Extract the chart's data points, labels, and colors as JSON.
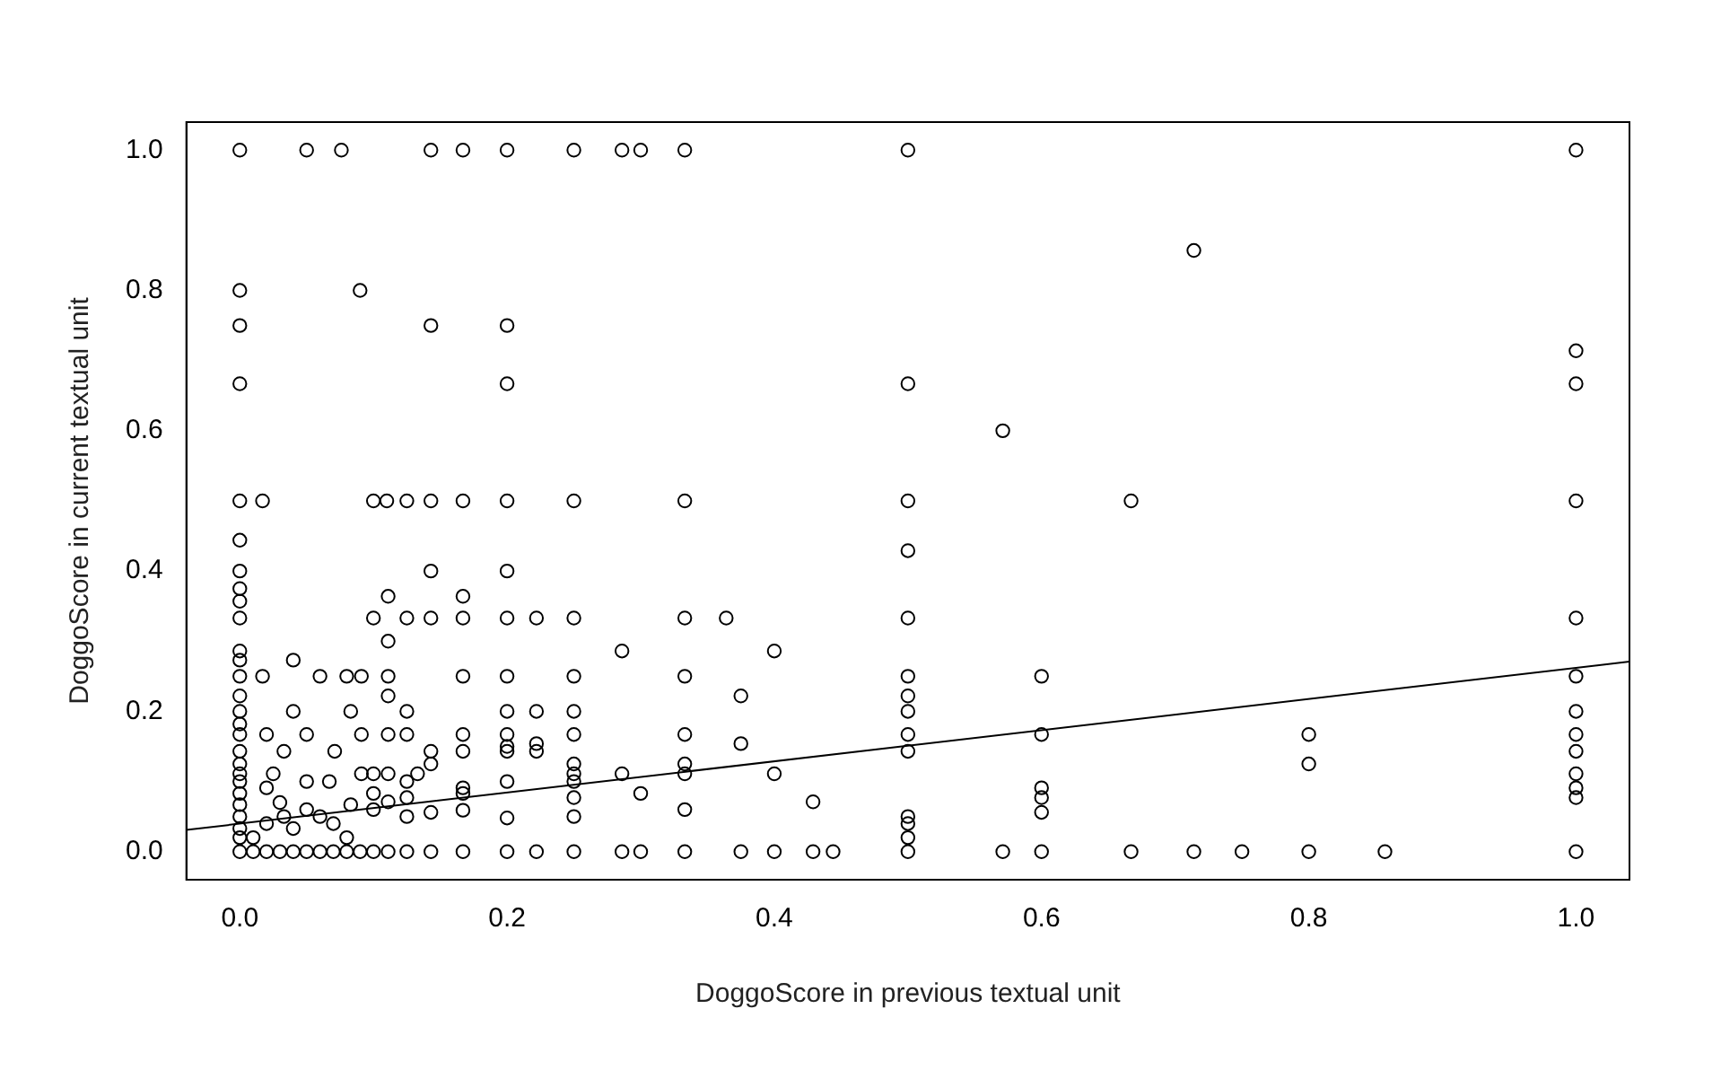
{
  "chart_data": {
    "type": "scatter",
    "xlabel": "DoggoScore in previous textual unit",
    "ylabel": "DoggoScore in current textual unit",
    "xlim": [
      -0.04,
      1.04
    ],
    "ylim": [
      -0.04,
      1.04
    ],
    "xticks": [
      {
        "value": 0,
        "label": "0.0"
      },
      0.2,
      0.4,
      0.6,
      0.8,
      {
        "value": 1,
        "label": "1.0"
      }
    ],
    "yticks": [
      {
        "value": 0,
        "label": "0.0"
      },
      0.2,
      0.4,
      0.6,
      0.8,
      {
        "value": 1,
        "label": "1.0"
      }
    ],
    "grid": false,
    "legend": false,
    "series": [
      {
        "type": "scatter",
        "marker": "circle",
        "color": "#000000",
        "x": [
          0,
          0.05,
          0.076,
          0.143,
          0.167,
          0.2,
          0.25,
          0.286,
          0.3,
          0.333,
          0.5,
          1,
          0,
          0.09,
          0,
          0.143,
          0.2,
          0,
          0.2,
          0,
          0.017,
          0.1,
          0.11,
          0.125,
          0.143,
          0.167,
          0.2,
          0.25,
          0.333,
          0.5,
          0.667,
          1,
          0.714,
          0.571,
          0.5,
          1,
          1,
          0.5,
          0.5,
          0.5,
          0.5,
          0.5,
          0.5,
          0.5,
          0.5,
          0.5,
          0.5,
          0.5,
          0.6,
          0.6,
          0.6,
          0.6,
          0.6,
          0.6,
          0.571,
          0.667,
          0.714,
          0.75,
          0.8,
          0.8,
          0.8,
          0.857,
          1,
          1,
          1,
          1,
          1,
          1,
          1,
          1,
          1,
          0.333,
          0.364,
          0.333,
          0.333,
          0.333,
          0.333,
          0.333,
          0.333,
          0.375,
          0.375,
          0.375,
          0.4,
          0.4,
          0.4,
          0.429,
          0.429,
          0.444,
          0.25,
          0.25,
          0.25,
          0.25,
          0.25,
          0.25,
          0.25,
          0.25,
          0.25,
          0.25,
          0.286,
          0.286,
          0.286,
          0.3,
          0.3,
          0.2,
          0.2,
          0.2,
          0.2,
          0.2,
          0.2,
          0.2,
          0.2,
          0.2,
          0.2,
          0.222,
          0.222,
          0.222,
          0.222,
          0.222,
          0.167,
          0.167,
          0.167,
          0.167,
          0.167,
          0.167,
          0.167,
          0.167,
          0.167,
          0.143,
          0.143,
          0.143,
          0.143,
          0.143,
          0.143,
          0.1,
          0.111,
          0.111,
          0.111,
          0.111,
          0.111,
          0.111,
          0.111,
          0.111,
          0.125,
          0.125,
          0.125,
          0.125,
          0.125,
          0.125,
          0.125,
          0.133,
          0,
          0,
          0,
          0,
          0,
          0,
          0,
          0,
          0,
          0,
          0,
          0,
          0,
          0,
          0,
          0,
          0,
          0,
          0,
          0,
          0,
          0,
          0.017,
          0.02,
          0.04,
          0.04,
          0.05,
          0.06,
          0.08,
          0.083,
          0.091,
          0.091,
          0.071,
          0.091,
          0.1,
          0.1,
          0.1,
          0.05,
          0.033,
          0.025,
          0.02,
          0.03,
          0.05,
          0.06,
          0.07,
          0.04,
          0.02,
          0.01,
          0.08,
          0.01,
          0.02,
          0.03,
          0.04,
          0.05,
          0.06,
          0.07,
          0.08,
          0.09,
          0.1,
          0.033,
          0.067,
          0.083
        ],
        "values": [
          1,
          1,
          1,
          1,
          1,
          1,
          1,
          1,
          1,
          1,
          1,
          1,
          0.8,
          0.8,
          0.75,
          0.75,
          0.75,
          0.667,
          0.667,
          0.5,
          0.5,
          0.5,
          0.5,
          0.5,
          0.5,
          0.5,
          0.5,
          0.5,
          0.5,
          0.5,
          0.5,
          0.5,
          0.857,
          0.6,
          0.667,
          0.714,
          0.667,
          0.429,
          0.333,
          0.25,
          0.222,
          0.2,
          0.167,
          0.143,
          0.05,
          0.04,
          0.02,
          0,
          0.25,
          0.167,
          0.091,
          0.077,
          0.056,
          0,
          0,
          0,
          0,
          0,
          0.167,
          0.125,
          0,
          0,
          0.333,
          0.25,
          0.2,
          0.167,
          0.143,
          0.111,
          0.091,
          0.077,
          0,
          0.333,
          0.333,
          0.25,
          0.167,
          0.125,
          0.111,
          0.06,
          0,
          0.222,
          0.154,
          0,
          0.286,
          0.111,
          0,
          0.071,
          0,
          0,
          0.333,
          0.25,
          0.2,
          0.167,
          0.125,
          0.111,
          0.1,
          0.077,
          0.05,
          0,
          0.286,
          0.111,
          0,
          0.083,
          0,
          0.4,
          0.333,
          0.25,
          0.2,
          0.167,
          0.15,
          0.143,
          0.1,
          0.048,
          0,
          0.333,
          0.2,
          0.154,
          0.143,
          0,
          0.364,
          0.333,
          0.25,
          0.167,
          0.143,
          0.091,
          0.083,
          0.059,
          0,
          0.4,
          0.333,
          0.143,
          0.125,
          0.056,
          0,
          0.333,
          0.364,
          0.3,
          0.25,
          0.222,
          0.167,
          0.111,
          0.071,
          0,
          0.333,
          0.2,
          0.167,
          0.1,
          0.077,
          0.05,
          0,
          0.111,
          0.444,
          0.4,
          0.375,
          0.357,
          0.333,
          0.286,
          0.273,
          0.25,
          0.222,
          0.2,
          0.182,
          0.167,
          0.143,
          0.125,
          0.111,
          0.1,
          0.083,
          0.067,
          0.05,
          0.033,
          0.02,
          0,
          0.25,
          0.167,
          0.273,
          0.2,
          0.167,
          0.25,
          0.25,
          0.2,
          0.25,
          0.167,
          0.143,
          0.111,
          0.111,
          0.083,
          0.06,
          0.1,
          0.143,
          0.111,
          0.091,
          0.07,
          0.06,
          0.05,
          0.04,
          0.033,
          0.04,
          0.02,
          0.02,
          0,
          0,
          0,
          0,
          0,
          0,
          0,
          0,
          0,
          0,
          0.05,
          0.1,
          0.067
        ]
      },
      {
        "type": "line",
        "marker": "none",
        "color": "#000000",
        "x": [
          -0.04,
          1.04
        ],
        "values": [
          0.031,
          0.271
        ]
      }
    ]
  }
}
